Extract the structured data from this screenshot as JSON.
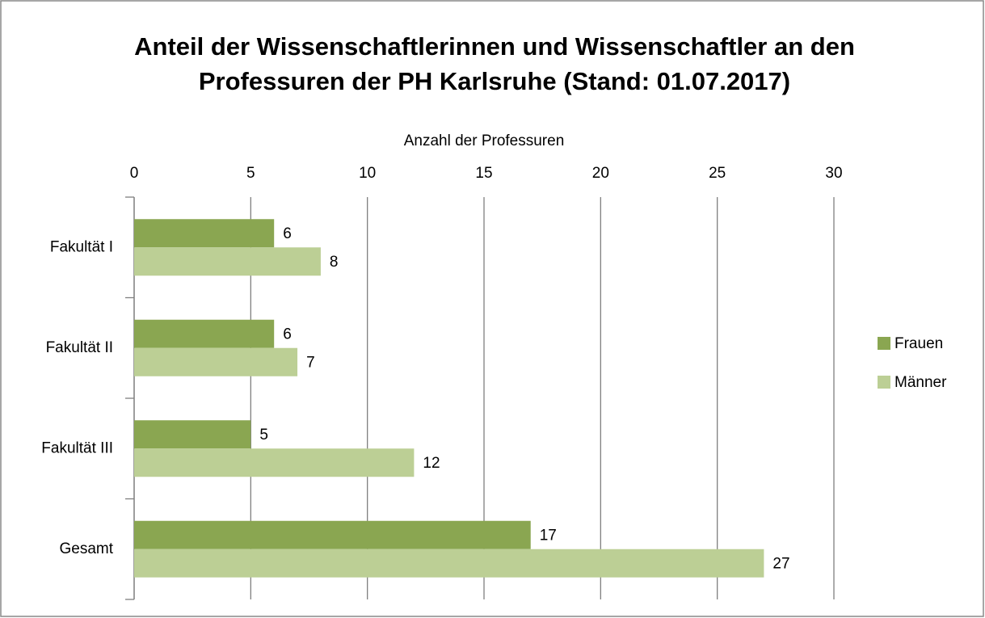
{
  "chart_data": {
    "type": "hbar",
    "title": [
      "Anteil der Wissenschaftlerinnen und Wissenschaftler an den",
      "Professuren der PH Karlsruhe (Stand: 01.07.2017)"
    ],
    "x_label": "Anzahl der Professuren",
    "categories": [
      "Fakultät I",
      "Fakultät II",
      "Fakultät III",
      "Gesamt"
    ],
    "series": [
      {
        "name": "Frauen",
        "color": "#8aa651",
        "values": [
          6,
          6,
          5,
          17
        ]
      },
      {
        "name": "Männer",
        "color": "#bccf95",
        "values": [
          8,
          7,
          12,
          27
        ]
      }
    ],
    "xlim": [
      0,
      30
    ],
    "xticks": [
      0,
      5,
      10,
      15,
      20,
      25,
      30
    ],
    "grid": true,
    "legend": "right"
  }
}
